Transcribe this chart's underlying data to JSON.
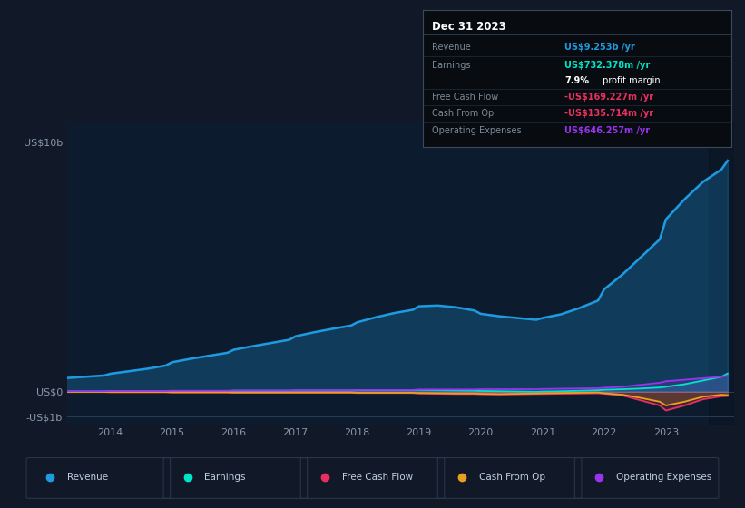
{
  "bg_color": "#111827",
  "plot_bg_color": "#0d1b2e",
  "text_color": "#8899aa",
  "years": [
    2013.0,
    2013.3,
    2013.6,
    2013.9,
    2014.0,
    2014.3,
    2014.6,
    2014.9,
    2015.0,
    2015.3,
    2015.6,
    2015.9,
    2016.0,
    2016.3,
    2016.6,
    2016.9,
    2017.0,
    2017.3,
    2017.6,
    2017.9,
    2018.0,
    2018.3,
    2018.6,
    2018.9,
    2019.0,
    2019.3,
    2019.6,
    2019.9,
    2020.0,
    2020.3,
    2020.6,
    2020.9,
    2021.0,
    2021.3,
    2021.6,
    2021.9,
    2022.0,
    2022.3,
    2022.6,
    2022.9,
    2023.0,
    2023.3,
    2023.6,
    2023.9,
    2024.0
  ],
  "revenue": [
    0.5,
    0.55,
    0.6,
    0.65,
    0.72,
    0.82,
    0.92,
    1.05,
    1.18,
    1.32,
    1.44,
    1.56,
    1.68,
    1.82,
    1.95,
    2.08,
    2.22,
    2.38,
    2.52,
    2.65,
    2.78,
    2.98,
    3.15,
    3.28,
    3.42,
    3.45,
    3.38,
    3.25,
    3.12,
    3.02,
    2.95,
    2.88,
    2.95,
    3.1,
    3.35,
    3.65,
    4.1,
    4.7,
    5.4,
    6.1,
    6.9,
    7.7,
    8.4,
    8.9,
    9.253
  ],
  "earnings": [
    0.01,
    0.01,
    0.01,
    0.01,
    0.02,
    0.02,
    0.02,
    0.02,
    0.03,
    0.03,
    0.03,
    0.03,
    0.04,
    0.04,
    0.04,
    0.04,
    0.05,
    0.05,
    0.05,
    0.05,
    0.06,
    0.06,
    0.06,
    0.06,
    0.07,
    0.06,
    0.05,
    0.04,
    0.03,
    0.02,
    0.01,
    0.0,
    0.01,
    0.02,
    0.04,
    0.06,
    0.08,
    0.1,
    0.13,
    0.17,
    0.2,
    0.3,
    0.45,
    0.6,
    0.732
  ],
  "free_cash_flow": [
    -0.01,
    -0.01,
    -0.01,
    -0.01,
    -0.02,
    -0.02,
    -0.02,
    -0.02,
    -0.03,
    -0.03,
    -0.03,
    -0.03,
    -0.04,
    -0.04,
    -0.04,
    -0.04,
    -0.04,
    -0.04,
    -0.04,
    -0.04,
    -0.05,
    -0.05,
    -0.05,
    -0.05,
    -0.07,
    -0.08,
    -0.09,
    -0.09,
    -0.1,
    -0.11,
    -0.1,
    -0.09,
    -0.09,
    -0.08,
    -0.07,
    -0.06,
    -0.08,
    -0.15,
    -0.35,
    -0.55,
    -0.75,
    -0.55,
    -0.3,
    -0.18,
    -0.169
  ],
  "cash_from_op": [
    -0.01,
    -0.01,
    -0.01,
    -0.01,
    -0.01,
    -0.01,
    -0.01,
    -0.01,
    -0.02,
    -0.02,
    -0.02,
    -0.02,
    -0.03,
    -0.03,
    -0.03,
    -0.03,
    -0.03,
    -0.03,
    -0.03,
    -0.03,
    -0.04,
    -0.04,
    -0.04,
    -0.04,
    -0.05,
    -0.06,
    -0.07,
    -0.07,
    -0.08,
    -0.09,
    -0.08,
    -0.07,
    -0.06,
    -0.05,
    -0.04,
    -0.03,
    -0.06,
    -0.12,
    -0.25,
    -0.4,
    -0.55,
    -0.4,
    -0.2,
    -0.12,
    -0.136
  ],
  "operating_expenses": [
    0.02,
    0.02,
    0.02,
    0.02,
    0.03,
    0.03,
    0.03,
    0.03,
    0.04,
    0.04,
    0.04,
    0.04,
    0.05,
    0.05,
    0.05,
    0.05,
    0.06,
    0.06,
    0.06,
    0.06,
    0.07,
    0.07,
    0.07,
    0.07,
    0.09,
    0.09,
    0.09,
    0.09,
    0.1,
    0.1,
    0.1,
    0.1,
    0.11,
    0.12,
    0.13,
    0.14,
    0.16,
    0.2,
    0.28,
    0.36,
    0.42,
    0.48,
    0.54,
    0.6,
    0.646
  ],
  "revenue_color": "#1e9be0",
  "earnings_color": "#00e5c8",
  "free_cash_flow_color": "#e83060",
  "cash_from_op_color": "#e8a020",
  "operating_expenses_color": "#9933ee",
  "xlim_start": 2013.3,
  "xlim_end": 2024.1,
  "ylim_min": -1.3,
  "ylim_max": 10.8,
  "xticks": [
    2014,
    2015,
    2016,
    2017,
    2018,
    2019,
    2020,
    2021,
    2022,
    2023
  ],
  "legend_items": [
    "Revenue",
    "Earnings",
    "Free Cash Flow",
    "Cash From Op",
    "Operating Expenses"
  ],
  "legend_colors": [
    "#1e9be0",
    "#00e5c8",
    "#e83060",
    "#e8a020",
    "#9933ee"
  ],
  "info_box_title": "Dec 31 2023",
  "info_rows": [
    {
      "label": "Revenue",
      "value": "US$9.253b /yr",
      "value_color": "#1e9be0",
      "bold_value": true
    },
    {
      "label": "Earnings",
      "value": "US$732.378m /yr",
      "value_color": "#00e5c8",
      "bold_value": true
    },
    {
      "label": "",
      "value": "7.9% profit margin",
      "value_color": "#ffffff",
      "bold_value": false,
      "bold_prefix": "7.9%"
    },
    {
      "label": "Free Cash Flow",
      "value": "-US$169.227m /yr",
      "value_color": "#e83060",
      "bold_value": true
    },
    {
      "label": "Cash From Op",
      "value": "-US$135.714m /yr",
      "value_color": "#e83060",
      "bold_value": true
    },
    {
      "label": "Operating Expenses",
      "value": "US$646.257m /yr",
      "value_color": "#9933ee",
      "bold_value": true
    }
  ]
}
